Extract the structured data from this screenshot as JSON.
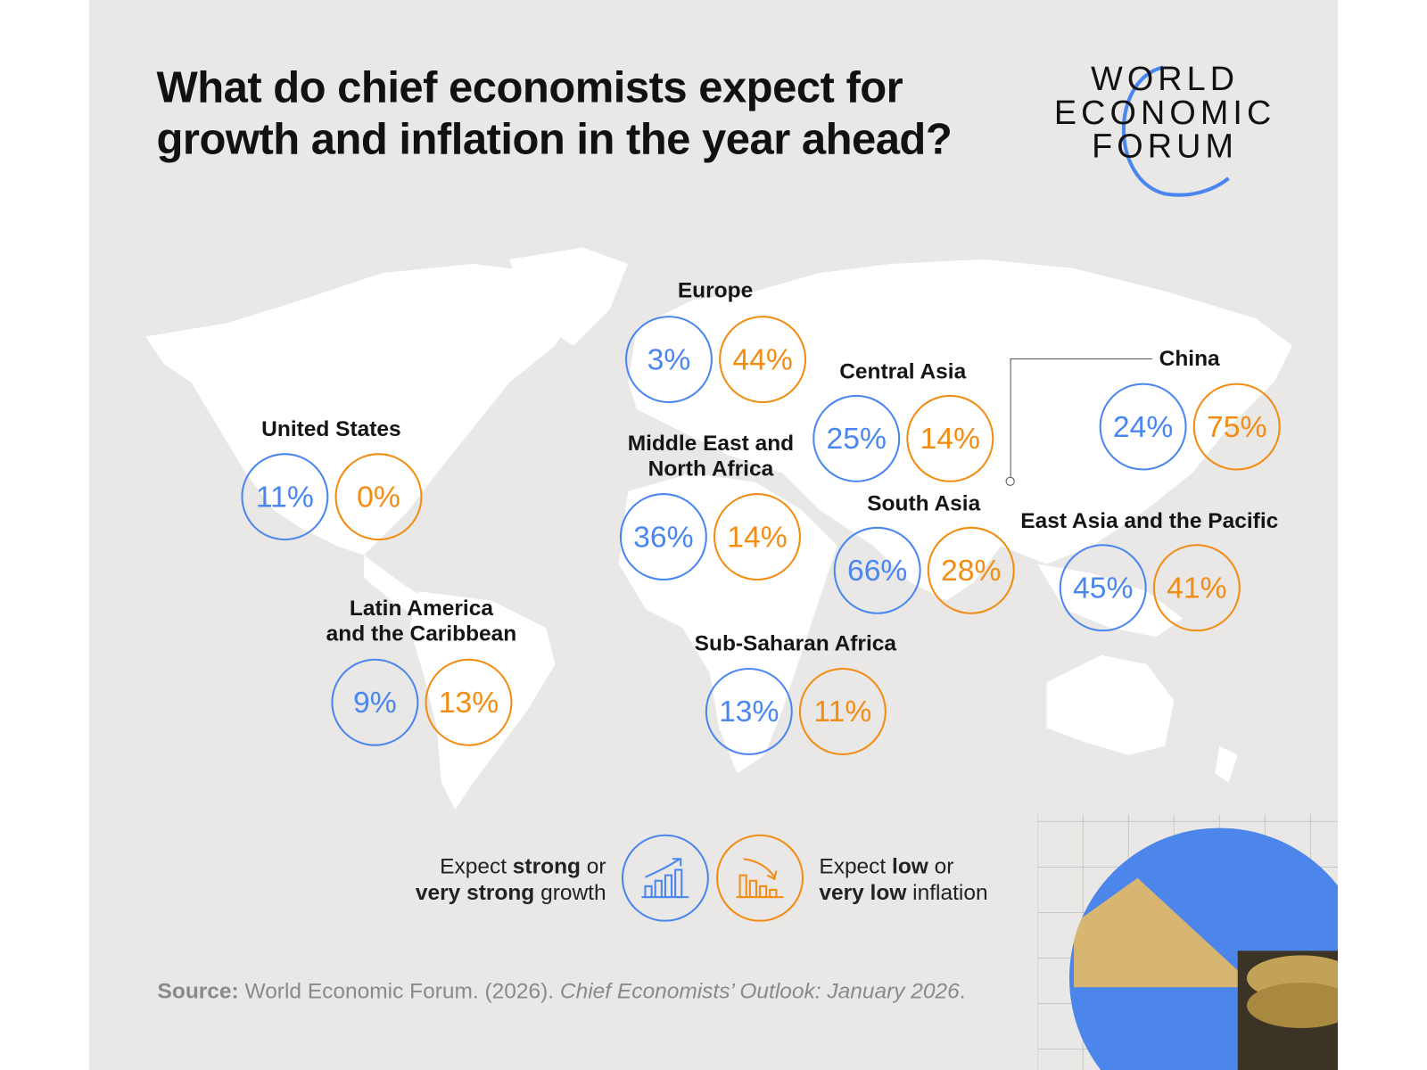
{
  "title": {
    "line1": "What do chief economists expect for",
    "line2": "growth and inflation in the year ahead?"
  },
  "logo": {
    "line1": "WORLD",
    "line2": "ECONOMIC",
    "line3": "FORUM"
  },
  "colors": {
    "growth": "#4a86f0",
    "inflation": "#f28c13",
    "background": "#e9e8e6",
    "map": "#ffffff"
  },
  "regions": [
    {
      "name": "Europe",
      "label_lines": [
        "Europe"
      ],
      "growth": "3%",
      "inflation": "44%"
    },
    {
      "name": "United States",
      "label_lines": [
        "United States"
      ],
      "growth": "11%",
      "inflation": "0%"
    },
    {
      "name": "Middle East and North Africa",
      "label_lines": [
        "Middle East and",
        "North Africa"
      ],
      "growth": "36%",
      "inflation": "14%"
    },
    {
      "name": "Central Asia",
      "label_lines": [
        "Central Asia"
      ],
      "growth": "25%",
      "inflation": "14%"
    },
    {
      "name": "China",
      "label_lines": [
        "China"
      ],
      "growth": "24%",
      "inflation": "75%"
    },
    {
      "name": "South Asia",
      "label_lines": [
        "South Asia"
      ],
      "growth": "66%",
      "inflation": "28%"
    },
    {
      "name": "East Asia and the Pacific",
      "label_lines": [
        "East Asia and the Pacific"
      ],
      "growth": "45%",
      "inflation": "41%"
    },
    {
      "name": "Latin America and the Caribbean",
      "label_lines": [
        "Latin America",
        "and the Caribbean"
      ],
      "growth": "9%",
      "inflation": "13%"
    },
    {
      "name": "Sub-Saharan Africa",
      "label_lines": [
        "Sub-Saharan Africa"
      ],
      "growth": "13%",
      "inflation": "11%"
    }
  ],
  "legend": {
    "growth": {
      "pre": "Expect ",
      "bold1": "strong",
      "mid": " or",
      "bold2": "very strong",
      "post": " growth",
      "icon": "bar-chart-up-arrow-icon"
    },
    "inflation": {
      "pre": "Expect ",
      "bold1": "low",
      "mid": " or",
      "bold2": "very low",
      "post": " inflation",
      "icon": "bar-chart-down-arrow-icon"
    }
  },
  "source": {
    "label": "Source:",
    "text": " World Economic Forum. (2026). ",
    "italic": "Chief Economists’ Outlook: January 2026",
    "end": "."
  }
}
